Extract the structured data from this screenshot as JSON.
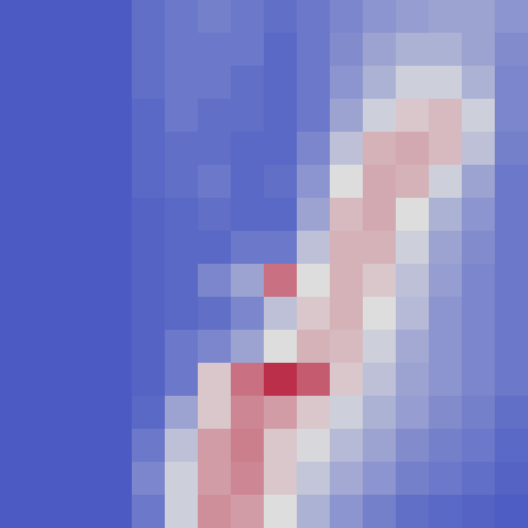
{
  "chart_data": {
    "type": "heatmap",
    "tick_labels": false,
    "grid": false,
    "zlim": [
      0,
      1
    ],
    "colors": [
      "#3b4cc0",
      "#dddddd",
      "#b40426"
    ],
    "cells": [
      [
        0.05,
        0.05,
        0.05,
        0.05,
        0.12,
        0.15,
        0.18,
        0.15,
        0.12,
        0.15,
        0.2,
        0.25,
        0.28,
        0.3,
        0.3,
        0.25
      ],
      [
        0.05,
        0.05,
        0.05,
        0.05,
        0.12,
        0.15,
        0.15,
        0.15,
        0.1,
        0.15,
        0.22,
        0.3,
        0.35,
        0.35,
        0.3,
        0.22
      ],
      [
        0.05,
        0.05,
        0.05,
        0.05,
        0.12,
        0.15,
        0.15,
        0.12,
        0.1,
        0.15,
        0.25,
        0.35,
        0.45,
        0.45,
        0.35,
        0.2
      ],
      [
        0.05,
        0.05,
        0.05,
        0.05,
        0.1,
        0.15,
        0.12,
        0.12,
        0.1,
        0.15,
        0.3,
        0.45,
        0.55,
        0.58,
        0.45,
        0.2
      ],
      [
        0.05,
        0.05,
        0.05,
        0.05,
        0.1,
        0.12,
        0.12,
        0.1,
        0.1,
        0.2,
        0.4,
        0.6,
        0.62,
        0.58,
        0.4,
        0.18
      ],
      [
        0.05,
        0.05,
        0.05,
        0.05,
        0.1,
        0.12,
        0.15,
        0.1,
        0.12,
        0.25,
        0.5,
        0.62,
        0.6,
        0.45,
        0.3,
        0.15
      ],
      [
        0.05,
        0.05,
        0.05,
        0.05,
        0.08,
        0.1,
        0.12,
        0.1,
        0.1,
        0.3,
        0.58,
        0.62,
        0.5,
        0.35,
        0.25,
        0.15
      ],
      [
        0.05,
        0.05,
        0.05,
        0.05,
        0.08,
        0.1,
        0.1,
        0.15,
        0.15,
        0.4,
        0.6,
        0.6,
        0.45,
        0.3,
        0.22,
        0.15
      ],
      [
        0.05,
        0.05,
        0.05,
        0.05,
        0.08,
        0.1,
        0.2,
        0.3,
        0.75,
        0.5,
        0.6,
        0.55,
        0.4,
        0.28,
        0.2,
        0.15
      ],
      [
        0.05,
        0.05,
        0.05,
        0.05,
        0.08,
        0.1,
        0.12,
        0.2,
        0.4,
        0.55,
        0.6,
        0.5,
        0.38,
        0.25,
        0.2,
        0.15
      ],
      [
        0.05,
        0.05,
        0.05,
        0.05,
        0.08,
        0.15,
        0.2,
        0.3,
        0.5,
        0.6,
        0.58,
        0.45,
        0.32,
        0.25,
        0.2,
        0.15
      ],
      [
        0.05,
        0.05,
        0.05,
        0.05,
        0.08,
        0.15,
        0.55,
        0.75,
        0.9,
        0.8,
        0.55,
        0.4,
        0.3,
        0.25,
        0.2,
        0.15
      ],
      [
        0.05,
        0.05,
        0.05,
        0.05,
        0.1,
        0.3,
        0.55,
        0.7,
        0.65,
        0.55,
        0.45,
        0.35,
        0.28,
        0.22,
        0.18,
        0.12
      ],
      [
        0.05,
        0.05,
        0.05,
        0.05,
        0.15,
        0.4,
        0.65,
        0.72,
        0.55,
        0.48,
        0.38,
        0.3,
        0.22,
        0.18,
        0.15,
        0.1
      ],
      [
        0.05,
        0.05,
        0.05,
        0.05,
        0.2,
        0.45,
        0.65,
        0.7,
        0.55,
        0.42,
        0.32,
        0.25,
        0.18,
        0.15,
        0.12,
        0.08
      ],
      [
        0.05,
        0.05,
        0.05,
        0.05,
        0.15,
        0.45,
        0.68,
        0.65,
        0.5,
        0.35,
        0.25,
        0.18,
        0.12,
        0.1,
        0.08,
        0.06
      ]
    ]
  }
}
